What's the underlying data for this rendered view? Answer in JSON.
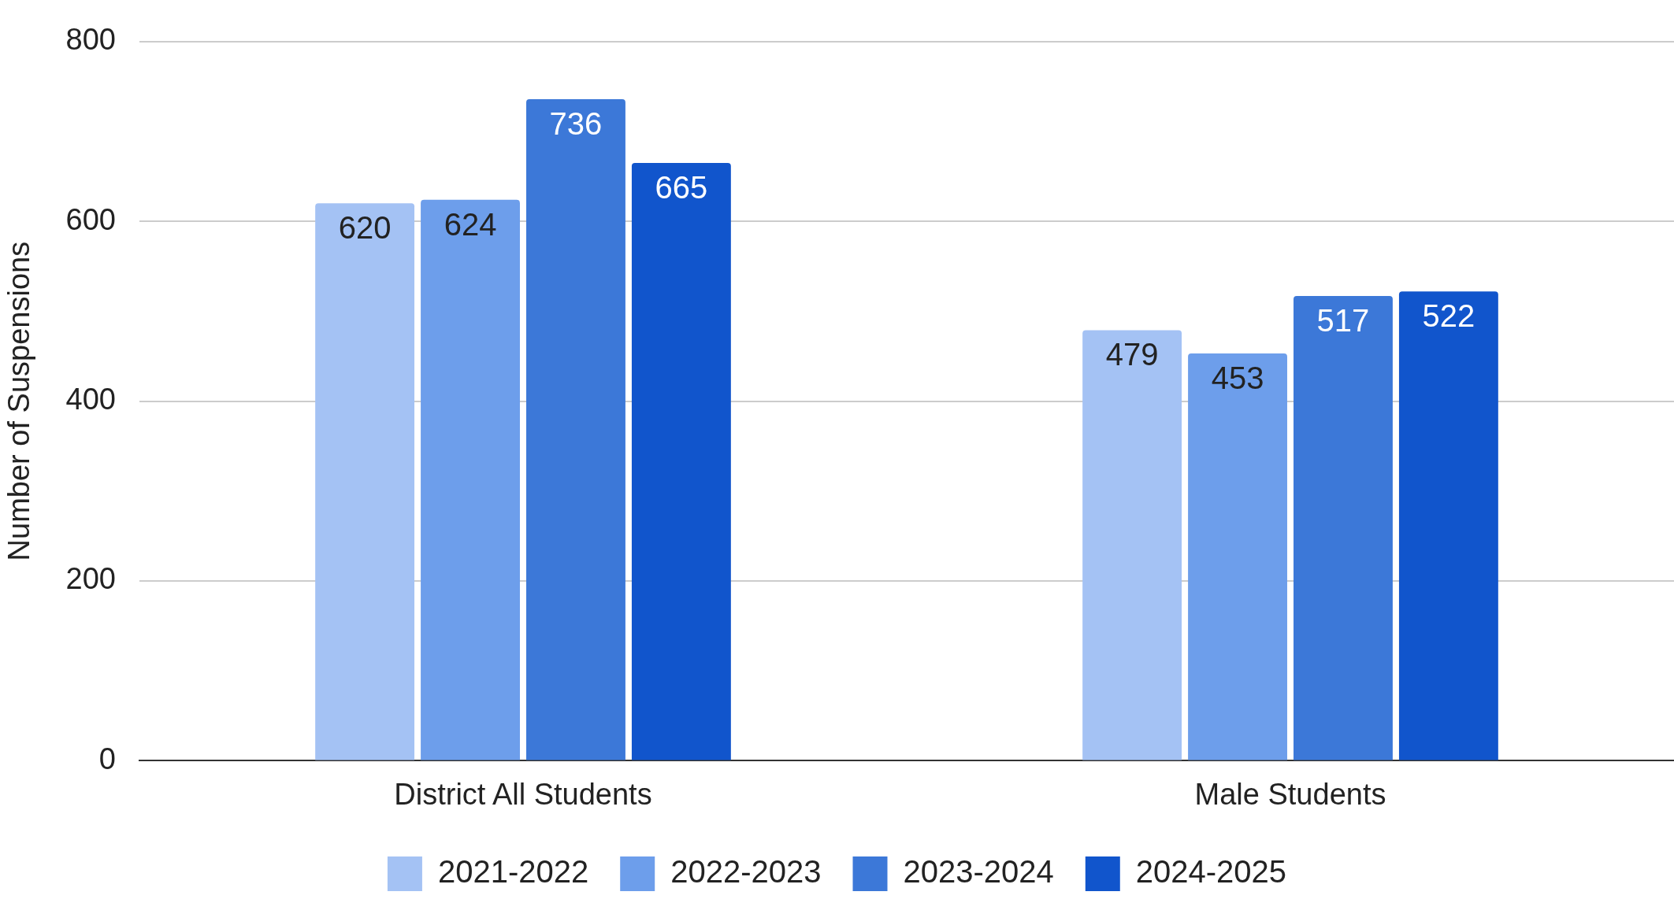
{
  "chart_data": {
    "type": "bar",
    "ylabel": "Number of Suspensions",
    "categories": [
      "District All Students",
      "Male Students"
    ],
    "series": [
      {
        "name": "2021-2022",
        "color": "#a4c2f4",
        "values": [
          620,
          479
        ]
      },
      {
        "name": "2022-2023",
        "color": "#6d9eeb",
        "values": [
          624,
          453
        ]
      },
      {
        "name": "2023-2024",
        "color": "#3c78d8",
        "values": [
          736,
          517
        ]
      },
      {
        "name": "2024-2025",
        "color": "#1155cc",
        "values": [
          665,
          522
        ]
      }
    ],
    "ylim": [
      0,
      800
    ],
    "yticks": [
      0,
      200,
      400,
      600,
      800
    ],
    "grid": "y",
    "legend": "bottom",
    "data_labels": true
  }
}
